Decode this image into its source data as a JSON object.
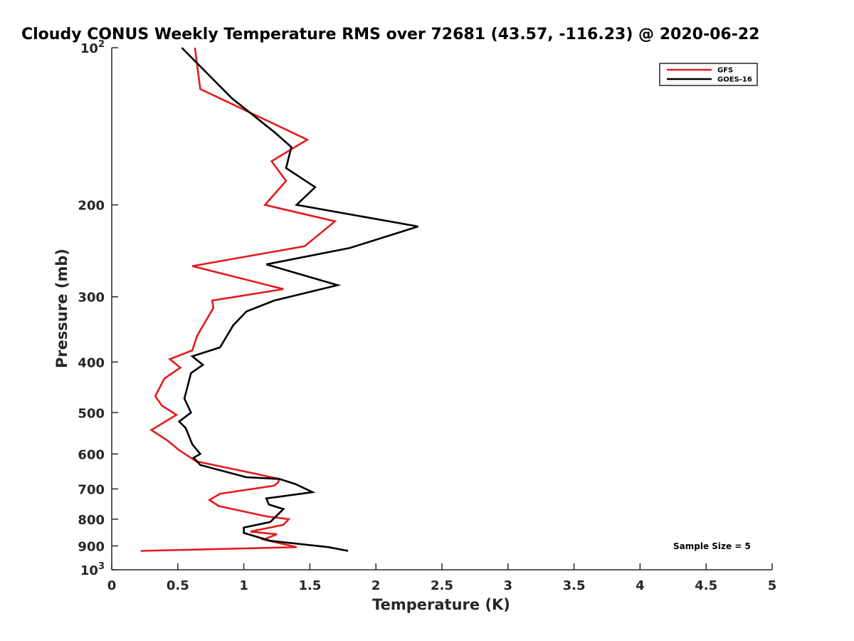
{
  "chart_data": {
    "type": "line",
    "title": "Cloudy CONUS Weekly Temperature RMS over 72681 (43.57, -116.23) @ 2020-06-22",
    "xlabel": "Temperature (K)",
    "ylabel": "Pressure (mb)",
    "xlim": [
      0,
      5
    ],
    "ylim": [
      100,
      1000
    ],
    "y_scale": "log",
    "y_reversed": true,
    "grid": false,
    "legend_position": "top-right",
    "x_ticks": [
      0,
      0.5,
      1,
      1.5,
      2,
      2.5,
      3,
      3.5,
      4,
      4.5,
      5
    ],
    "x_tick_labels": [
      "0",
      "0.5",
      "1",
      "1.5",
      "2",
      "2.5",
      "3",
      "3.5",
      "4",
      "4.5",
      "5"
    ],
    "y_ticks": [
      {
        "value": 100,
        "label": "10",
        "sup": "2"
      },
      {
        "value": 200,
        "label": "200"
      },
      {
        "value": 300,
        "label": "300"
      },
      {
        "value": 400,
        "label": "400"
      },
      {
        "value": 500,
        "label": "500"
      },
      {
        "value": 600,
        "label": "600"
      },
      {
        "value": 700,
        "label": "700"
      },
      {
        "value": 800,
        "label": "800"
      },
      {
        "value": 900,
        "label": "900"
      },
      {
        "value": 1000,
        "label": "10",
        "sup": "3"
      }
    ],
    "series": [
      {
        "name": "GFS",
        "color": "#e41a1c",
        "x": [
          0.63,
          0.67,
          1.48,
          1.21,
          1.32,
          1.16,
          1.69,
          1.46,
          0.61,
          1.3,
          0.76,
          0.77,
          0.65,
          0.64,
          0.61,
          0.44,
          0.52,
          0.4,
          0.33,
          0.38,
          0.49,
          0.3,
          0.42,
          0.51,
          0.64,
          1.03,
          1.27,
          1.26,
          1.23,
          0.82,
          0.74,
          0.81,
          1.17,
          1.34,
          1.3,
          1.05,
          1.25,
          1.15,
          1.4,
          0.22
        ],
        "y": [
          100,
          120,
          150,
          165,
          180,
          200,
          215,
          240,
          262,
          290,
          305,
          315,
          355,
          360,
          380,
          395,
          410,
          430,
          465,
          485,
          505,
          540,
          565,
          590,
          620,
          650,
          670,
          680,
          690,
          715,
          735,
          755,
          790,
          800,
          820,
          845,
          855,
          875,
          905,
          920
        ]
      },
      {
        "name": "GOES-16",
        "color": "#000000",
        "x": [
          0.53,
          0.91,
          1.23,
          1.36,
          1.32,
          1.54,
          1.4,
          2.32,
          1.8,
          1.17,
          1.71,
          1.23,
          1.02,
          0.92,
          0.82,
          0.61,
          0.69,
          0.6,
          0.55,
          0.6,
          0.51,
          0.56,
          0.61,
          0.67,
          0.62,
          0.67,
          1.02,
          1.27,
          1.39,
          1.52,
          1.17,
          1.19,
          1.3,
          1.2,
          1.0,
          1.0,
          1.2,
          1.64,
          1.79
        ],
        "y": [
          100,
          125,
          145,
          155,
          170,
          185,
          200,
          220,
          242,
          260,
          285,
          305,
          320,
          340,
          375,
          390,
          405,
          420,
          470,
          500,
          520,
          535,
          575,
          600,
          610,
          630,
          665,
          670,
          685,
          710,
          730,
          750,
          765,
          810,
          830,
          850,
          880,
          905,
          920
        ]
      }
    ],
    "annotation": "Sample Size = 5"
  }
}
